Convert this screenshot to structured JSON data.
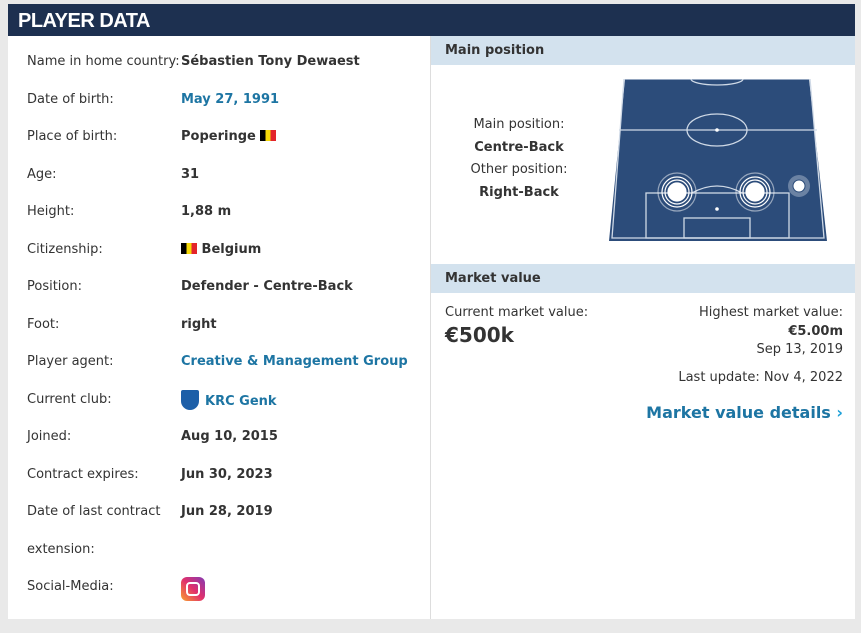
{
  "title": "PLAYER DATA",
  "rows": [
    {
      "label": "Name in home country:",
      "value": "Sébastien Tony Dewaest"
    },
    {
      "label": "Date of birth:",
      "value": "May 27, 1991",
      "link": true
    },
    {
      "label": "Place of birth:",
      "value": "Poperinge",
      "flag": "belgium-flag"
    },
    {
      "label": "Age:",
      "value": "31"
    },
    {
      "label": "Height:",
      "value": "1,88 m"
    },
    {
      "label": "Citizenship:",
      "value": "Belgium",
      "flag": "belgium-flag"
    },
    {
      "label": "Position:",
      "value": "Defender - Centre-Back"
    },
    {
      "label": "Foot:",
      "value": "right"
    },
    {
      "label": "Player agent:",
      "value": "Creative & Management Group",
      "link": true
    },
    {
      "label": "Current club:",
      "value": "KRC Genk",
      "link": true,
      "icon": "club-crest-icon"
    },
    {
      "label": "Joined:",
      "value": "Aug 10, 2015"
    },
    {
      "label": "Contract expires:",
      "value": "Jun 30, 2023"
    },
    {
      "label": "Date of last contract",
      "value": "Jun 28, 2019"
    },
    {
      "label": "extension:",
      "value": ""
    },
    {
      "label": "Social-Media:",
      "value": "",
      "icon": "instagram-icon"
    }
  ],
  "main_position": {
    "header": "Main position",
    "main_label": "Main position:",
    "main": "Centre-Back",
    "other_label": "Other position:",
    "other": "Right-Back"
  },
  "market_value": {
    "header": "Market value",
    "current_label": "Current market value:",
    "current": "€500k",
    "highest_label": "Highest market value:",
    "highest": "€5.00m",
    "highest_date": "Sep 13, 2019",
    "last_update": "Last update: Nov 4, 2022",
    "details_link": "Market value details"
  },
  "colors": {
    "header": "#1d3050",
    "link": "#1d75a3",
    "pitch": "#2c4c7a"
  }
}
